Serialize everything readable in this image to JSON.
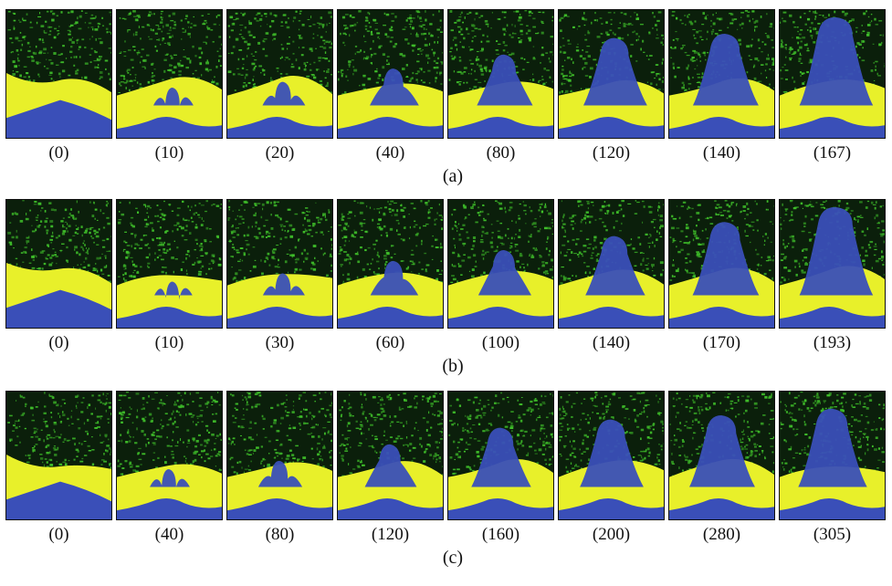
{
  "groups": [
    {
      "label": "(a)",
      "steps": [
        "(0)",
        "(10)",
        "(20)",
        "(40)",
        "(80)",
        "(120)",
        "(140)",
        "(167)"
      ],
      "plume_levels": [
        0.0,
        0.15,
        0.22,
        0.38,
        0.55,
        0.75,
        0.8,
        1.0
      ]
    },
    {
      "label": "(b)",
      "steps": [
        "(0)",
        "(10)",
        "(30)",
        "(60)",
        "(100)",
        "(140)",
        "(170)",
        "(193)"
      ],
      "plume_levels": [
        0.0,
        0.1,
        0.2,
        0.35,
        0.48,
        0.65,
        0.82,
        1.0
      ]
    },
    {
      "label": "(c)",
      "steps": [
        "(0)",
        "(40)",
        "(80)",
        "(120)",
        "(160)",
        "(200)",
        "(280)",
        "(305)"
      ],
      "plume_levels": [
        0.0,
        0.15,
        0.25,
        0.45,
        0.65,
        0.75,
        0.8,
        0.88
      ]
    }
  ],
  "colors": {
    "matrix_green": "#3fbf2a",
    "matrix_dark": "#0b1f0b",
    "interface_yellow": "#e8f02a",
    "plume_blue": "#3a4fb8",
    "border": "#111111"
  }
}
